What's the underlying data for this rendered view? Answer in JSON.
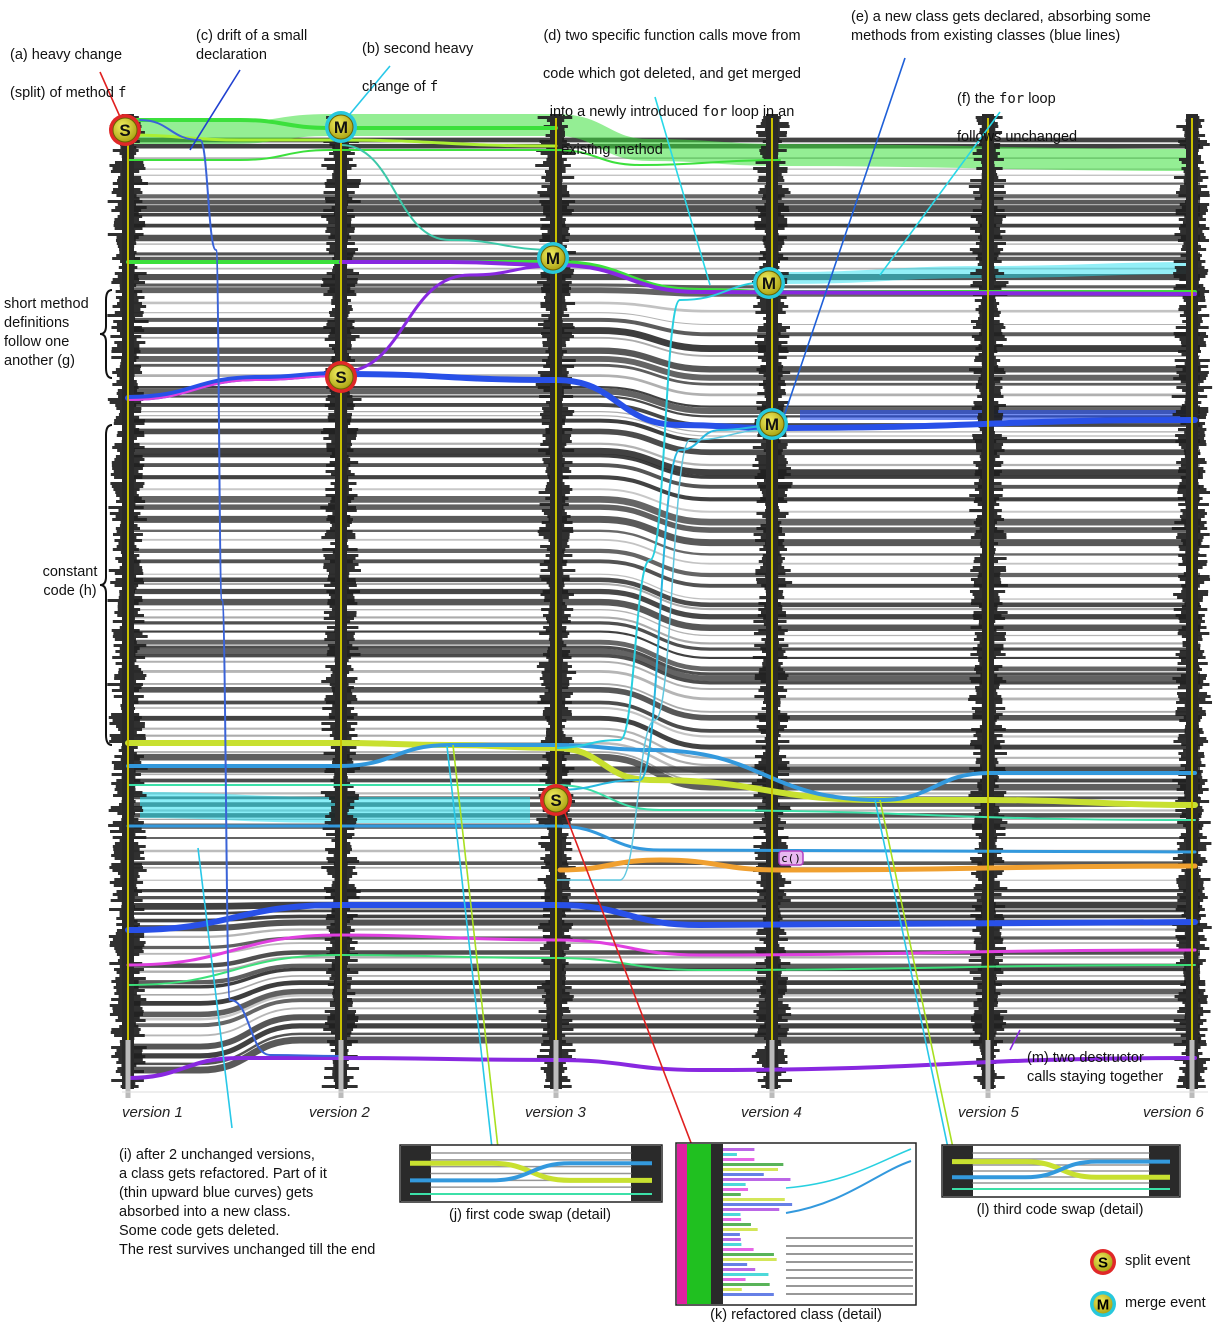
{
  "annotations": {
    "a": {
      "line1": "(a) heavy change",
      "line2_pre": "(split) of method ",
      "code": "f"
    },
    "b": {
      "line1": "(b) second heavy",
      "line2_pre": "change of ",
      "code": "f"
    },
    "c": {
      "text": "(c) drift of a small\ndeclaration"
    },
    "d": {
      "line1": "(d) two specific function calls move from",
      "line2": "code which got deleted, and get merged",
      "line3_pre": "into a newly introduced ",
      "code": "for",
      "line3_post": " loop in an",
      "line4": "existing method"
    },
    "e": {
      "text": "(e) a new class gets declared, absorbing some\nmethods from existing classes (blue lines)"
    },
    "f": {
      "line1_pre": "(f) the ",
      "code": "for",
      "line1_post": " loop",
      "line2": "follows unchanged"
    },
    "g": {
      "text": "short method\ndefinitions\nfollow one\nanother (g)"
    },
    "h": {
      "text": "constant\ncode (h)"
    },
    "i": {
      "text": "(i) after 2 unchanged versions,\na class gets refactored. Part of it\n(thin upward blue curves) gets\nabsorbed  into a new class.\nSome code gets deleted.\nThe rest survives unchanged till the end"
    },
    "m": {
      "text": "(m) two destructor\ncalls staying together"
    }
  },
  "versions": [
    "version 1",
    "version 2",
    "version 3",
    "version 4",
    "version 5",
    "version 6"
  ],
  "insets": {
    "j": "(j) first code swap (detail)",
    "k": "(k) refactored class (detail)",
    "l": "(l) third code swap (detail)"
  },
  "events": {
    "split": "S",
    "merge": "M"
  },
  "legend": {
    "split": "split event",
    "merge": "merge event"
  },
  "small_label": "c()",
  "colors": {
    "split_ring": "#e02828",
    "merge_ring": "#28c8dc",
    "event_fill": "#c8c020",
    "axis_yellow": "#c8c000",
    "green": "#3ce03c",
    "light_green": "#aaee33",
    "cyan": "#28e0f0",
    "blue": "#2850e8",
    "light_blue": "#3399dd",
    "purple": "#8828e0",
    "magenta": "#e040e0",
    "orange": "#f0a030",
    "gray": "#5a5a5a"
  }
}
